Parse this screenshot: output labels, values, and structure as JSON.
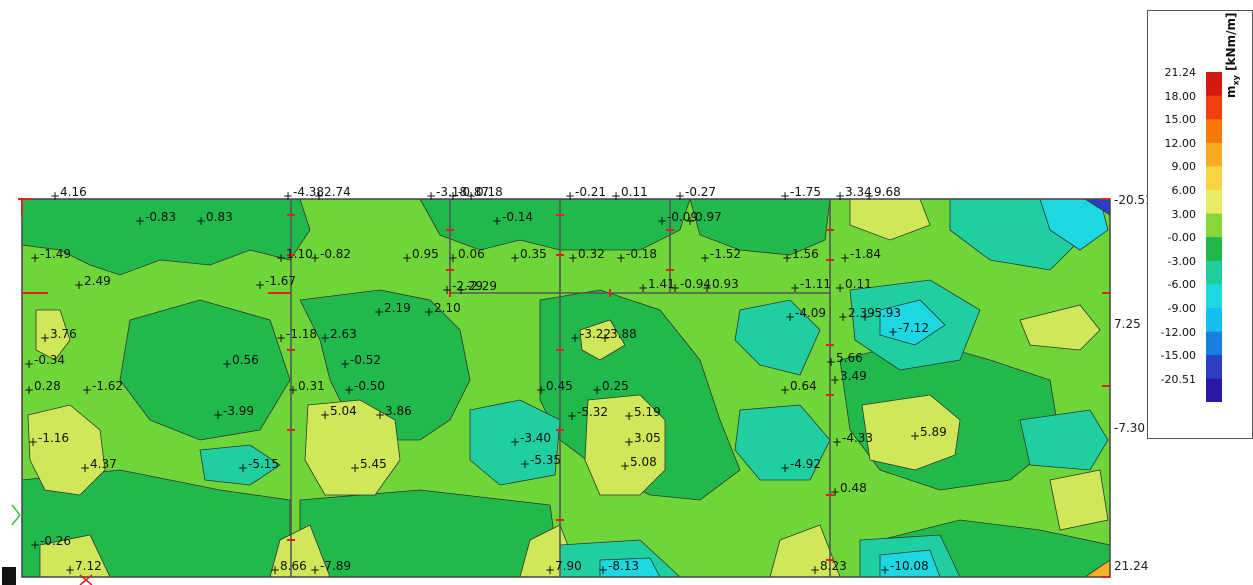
{
  "legend": {
    "title_main": "m",
    "title_sub": "xy",
    "title_unit": " [kNm/m]",
    "ticks": [
      "21.24",
      "18.00",
      "15.00",
      "12.00",
      "9.00",
      "6.00",
      "3.00",
      "-0.00",
      "-3.00",
      "-6.00",
      "-9.00",
      "-12.00",
      "-15.00",
      "-20.51"
    ],
    "colors": [
      "#d21a0e",
      "#f04010",
      "#f8780a",
      "#fbab20",
      "#f6d443",
      "#e6ed62",
      "#86d63a",
      "#1eb84a",
      "#20cf9d",
      "#1dd8df",
      "#18bdf2",
      "#1a7de0",
      "#2a3fc4",
      "#2a16a8"
    ]
  },
  "edge_values": {
    "right_top": "-20.51",
    "right_mid1": "7.25",
    "right_mid2": "-7.30",
    "right_bottom": "21.24"
  },
  "value_labels": [
    "4.16",
    "-4.38",
    "2.74",
    "-3.18",
    "-0.87",
    "0.18",
    "-0.21",
    "0.11",
    "-0.27",
    "-1.75",
    "3.34",
    "9.68",
    "-0.83",
    "0.83",
    "-0.14",
    "-0.09",
    "0.97",
    "-1.49",
    "1.10",
    "-0.82",
    "0.95",
    "0.06",
    "0.35",
    "0.32",
    "-0.18",
    "-1.52",
    "1.56",
    "-1.84",
    "2.49",
    "-1.67",
    "-2.29",
    "-2.29",
    "1.41",
    "-0.94",
    "0.93",
    "-1.11",
    "0.11",
    "2.19",
    "2.10",
    "-4.09",
    "2.39",
    "-5.93",
    "3.76",
    "-1.18",
    "2.63",
    "-3.22",
    "3.88",
    "-7.12",
    "-0.34",
    "0.56",
    "-0.52",
    "5.66",
    "0.28",
    "-1.62",
    "0.31",
    "-0.50",
    "0.45",
    "0.25",
    "0.64",
    "3.49",
    "-3.99",
    "5.04",
    "3.86",
    "-5.32",
    "5.19",
    "-1.16",
    "-3.40",
    "3.05",
    "-4.33",
    "5.89",
    "4.37",
    "-5.15",
    "5.45",
    "-5.35",
    "5.08",
    "-4.92",
    "0.48",
    "-0.26",
    "7.12",
    "8.66",
    "-7.89",
    "7.90",
    "-8.13",
    "8.23",
    "-10.08"
  ]
}
